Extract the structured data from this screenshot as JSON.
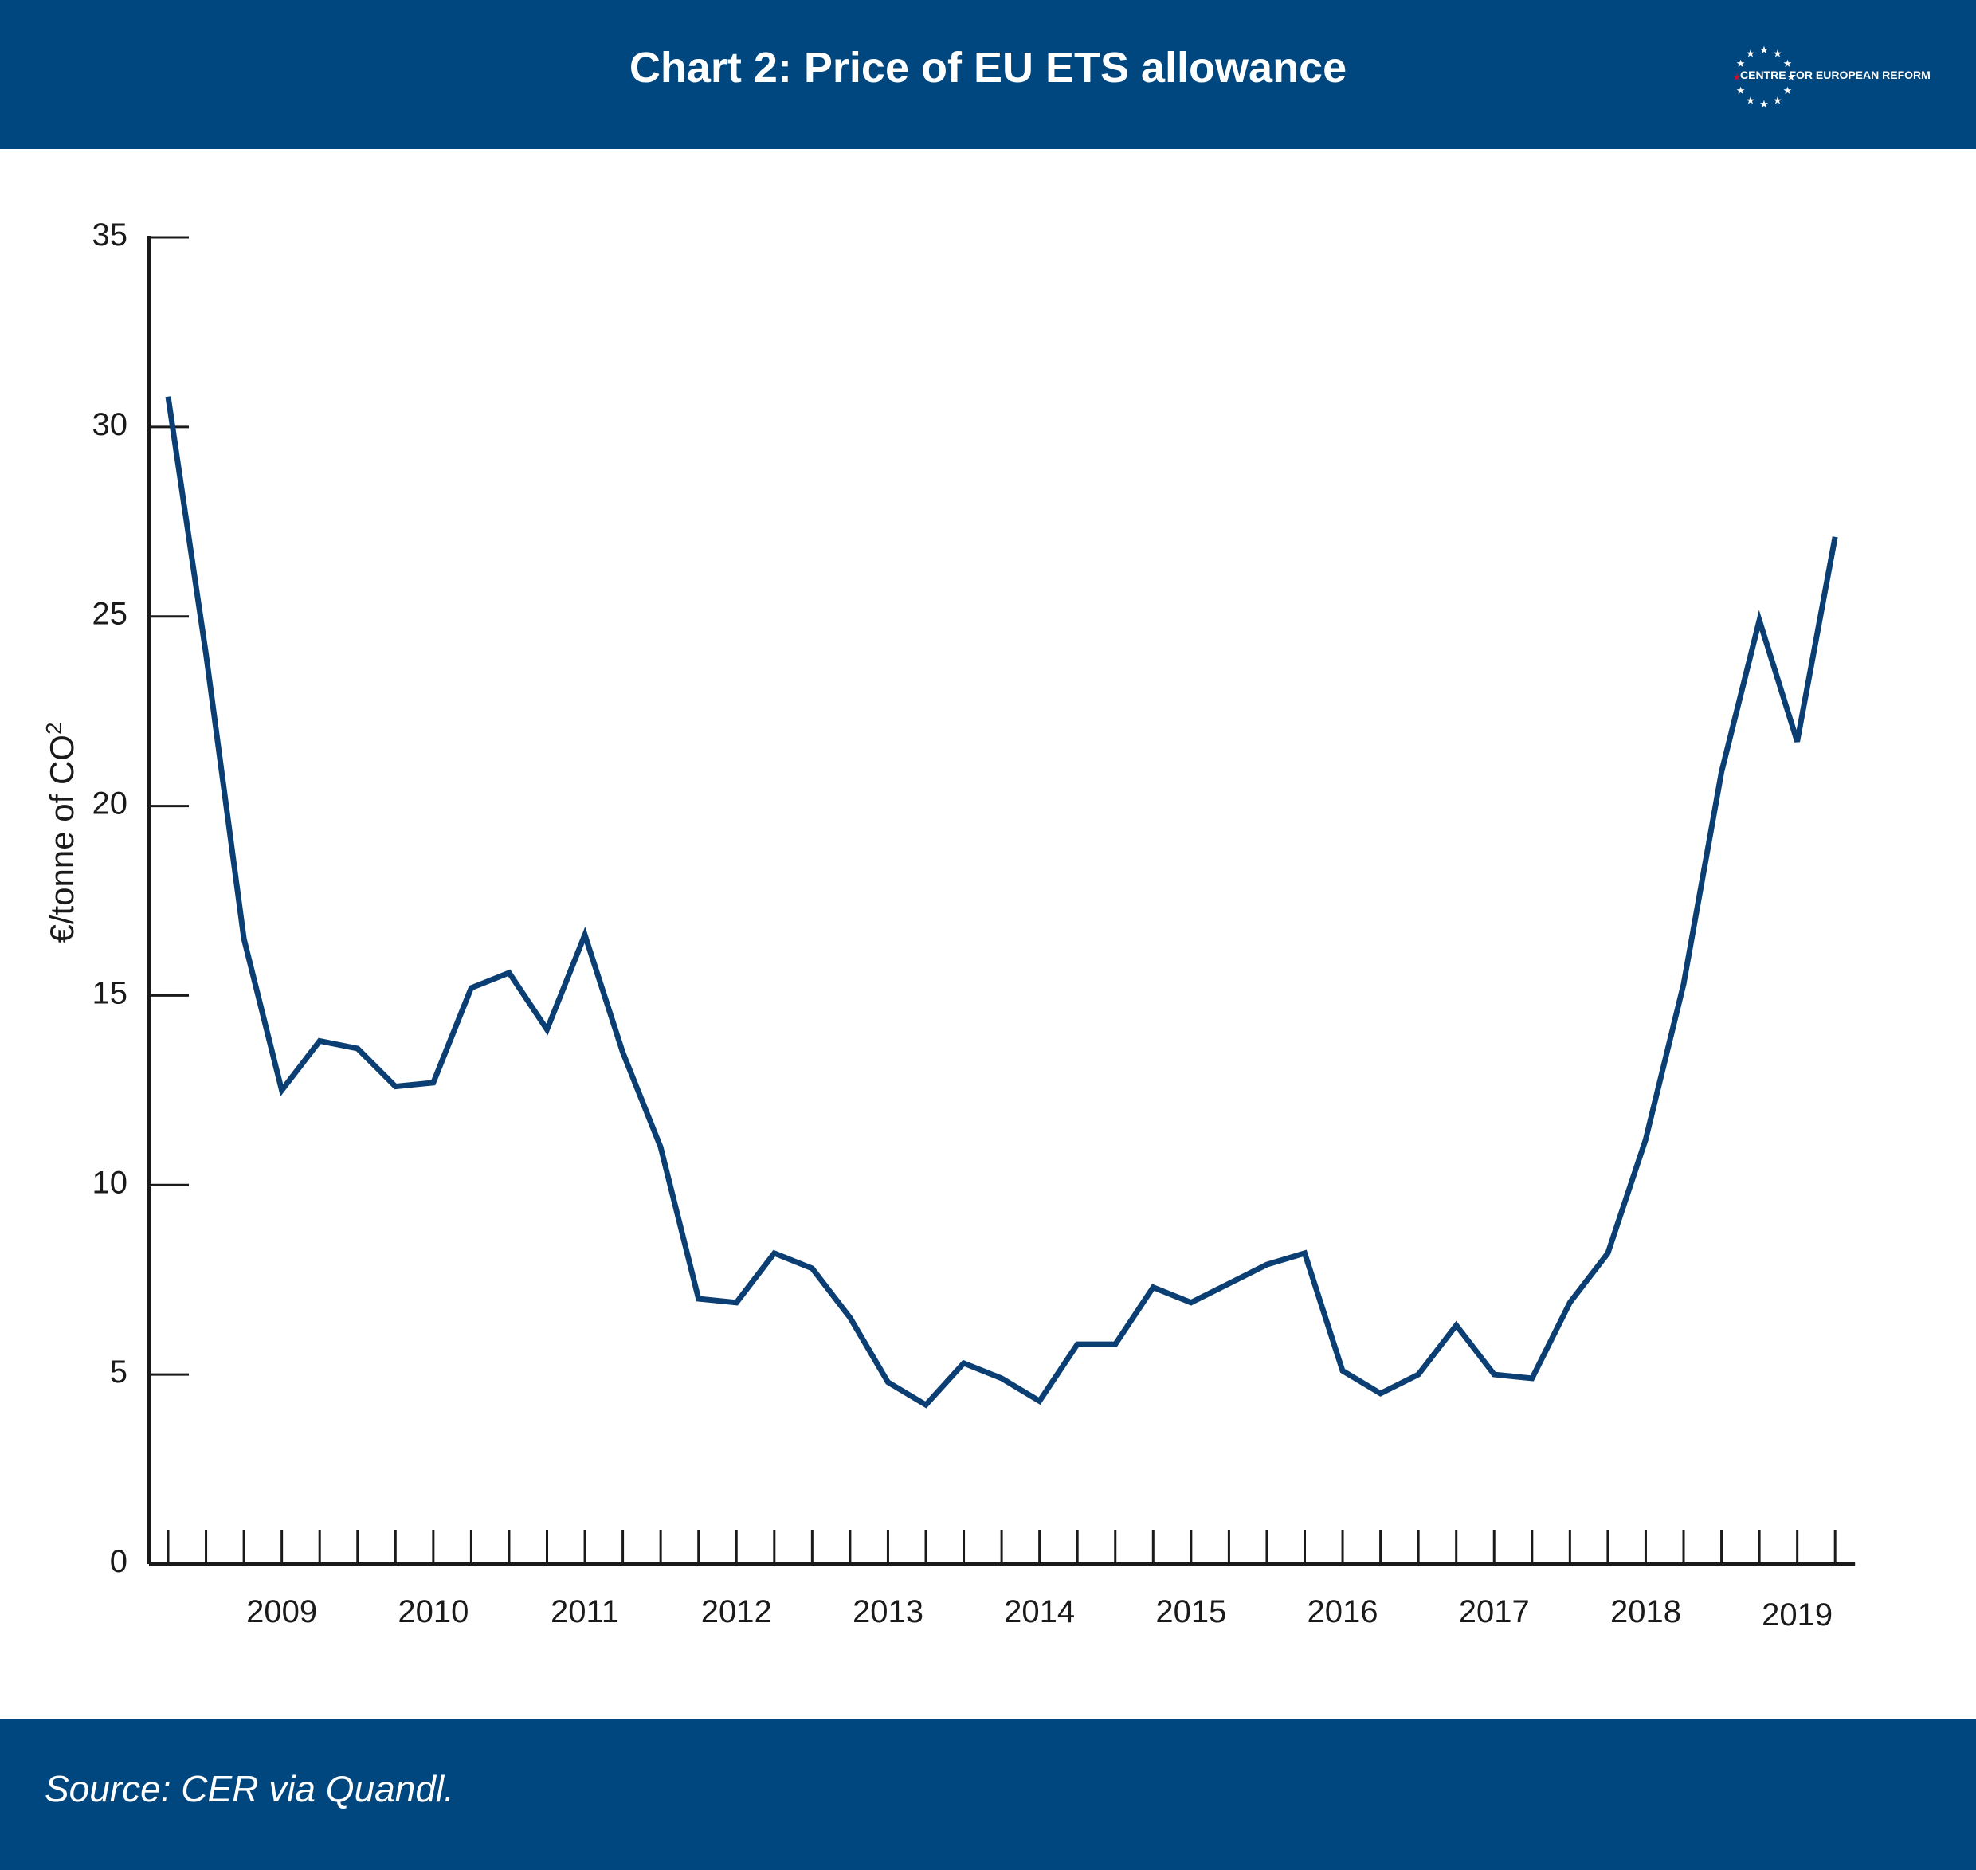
{
  "header": {
    "title": "Chart 2: Price of EU ETS allowance",
    "logo_text": "CENTRE FOR EUROPEAN REFORM"
  },
  "footer": {
    "source": "Source: CER via Quandl."
  },
  "colors": {
    "brand_bar": "#00477f",
    "series_line": "#0b3f73",
    "axis": "#1a1a1a",
    "logo_star_accent": "#c8102e"
  },
  "chart_data": {
    "type": "line",
    "title": "Chart 2: Price of EU ETS allowance",
    "xlabel": "",
    "ylabel": "€/tonne of CO2",
    "ylim": [
      0,
      35
    ],
    "yticks": [
      0,
      5,
      10,
      15,
      20,
      25,
      30,
      35
    ],
    "grid": false,
    "legend": "none",
    "x_tick_labels": [
      "2009",
      "2010",
      "2011",
      "2012",
      "2013",
      "2014",
      "2015",
      "2016",
      "2017",
      "2018",
      "2019"
    ],
    "x_label_index": [
      3,
      7,
      11,
      15,
      19,
      23,
      27,
      31,
      35,
      39,
      43
    ],
    "x_quarter_ticks": 45,
    "series": [
      {
        "values": [
          30.8,
          24.0,
          16.5,
          12.5,
          13.8,
          13.6,
          12.6,
          12.7,
          15.2,
          15.6,
          14.1,
          16.6,
          13.5,
          11.0,
          7.0,
          6.9,
          8.2,
          7.8,
          6.5,
          4.8,
          4.2,
          5.3,
          4.9,
          4.3,
          5.8,
          5.8,
          7.3,
          6.9,
          7.4,
          7.9,
          8.2,
          5.1,
          4.5,
          5.0,
          6.3,
          5.0,
          4.9,
          6.9,
          8.2,
          11.2,
          15.3,
          20.9,
          24.9,
          21.7,
          27.1
        ]
      }
    ]
  }
}
